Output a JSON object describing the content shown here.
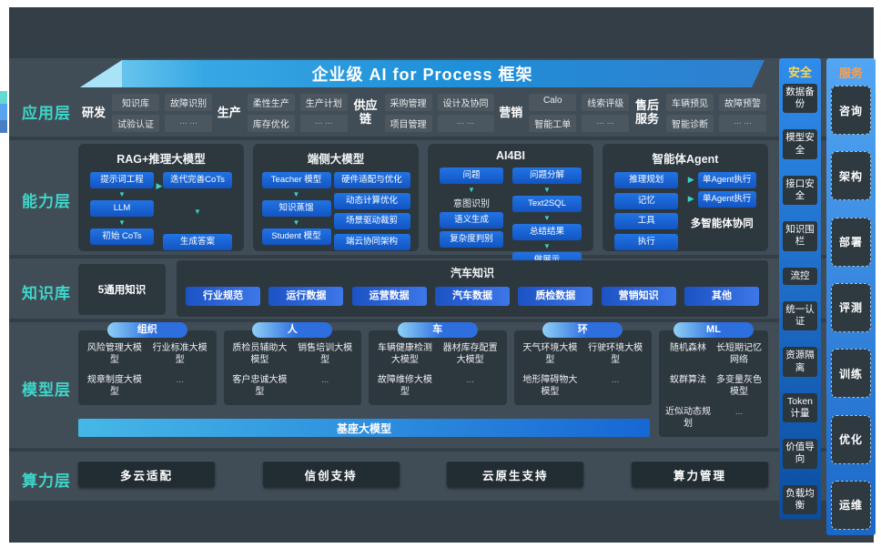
{
  "title": "企业级 AI for Process 框架",
  "layer_labels": {
    "app": "应用层",
    "capability": "能力层",
    "knowledge": "知识库",
    "model": "模型层",
    "compute": "算力层"
  },
  "app": {
    "groups": [
      {
        "label": "研发",
        "items": [
          "知识库",
          "故障识别",
          "试验认证",
          "... ..."
        ]
      },
      {
        "label": "生产",
        "items": [
          "柔性生产",
          "生产计划",
          "库存优化",
          "... ..."
        ]
      },
      {
        "label": "供应链",
        "items": [
          "采购管理",
          "设计及协同",
          "项目管理",
          "... ..."
        ]
      },
      {
        "label": "营销",
        "items": [
          "Calo",
          "线索评级",
          "智能工单",
          "... ..."
        ]
      },
      {
        "label": "售后服务",
        "items": [
          "车辆预见",
          "故障预警",
          "智能诊断",
          "... ..."
        ]
      }
    ]
  },
  "capability": {
    "boxes": [
      {
        "title": "RAG+推理大模型",
        "left": [
          "提示词工程",
          "LLM",
          "初始 CoTs"
        ],
        "right": [
          "迭代完善CoTs",
          "生成答案"
        ]
      },
      {
        "title": "端侧大模型",
        "left": [
          "Teacher 模型",
          "知识蒸馏",
          "Student 模型"
        ],
        "right": [
          "硬件适配与优化",
          "动态计算优化",
          "场景驱动裁剪",
          "端云协同架构"
        ]
      },
      {
        "title": "AI4BI",
        "left": [
          "问题",
          "意图识别",
          "语义生成",
          "复杂度判别"
        ],
        "right": [
          "问题分解",
          "Text2SQL",
          "总结结果",
          "做展示"
        ]
      },
      {
        "title": "智能体Agent",
        "left": [
          "推理规划",
          "记忆",
          "工具",
          "执行"
        ],
        "right": [
          "单Agent执行",
          "单Agent执行"
        ],
        "note": "多智能体协同"
      }
    ]
  },
  "knowledge": {
    "general": "5通用知识",
    "domain_title": "汽车知识",
    "pills": [
      "行业规范",
      "运行数据",
      "运营数据",
      "汽车数据",
      "质检数据",
      "营销知识",
      "其他"
    ]
  },
  "model": {
    "groups": [
      {
        "label": "组织",
        "items": [
          "风险管理大模型",
          "行业标准大模型",
          "规章制度大模型",
          "..."
        ]
      },
      {
        "label": "人",
        "items": [
          "质检员辅助大模型",
          "销售培训大模型",
          "客户忠诚大模型",
          "..."
        ]
      },
      {
        "label": "车",
        "items": [
          "车辆健康检测大模型",
          "器材库存配置大模型",
          "故障维修大模型",
          "..."
        ]
      },
      {
        "label": "环",
        "items": [
          "天气环境大模型",
          "行驶环境大模型",
          "地形障碍物大模型",
          "..."
        ]
      },
      {
        "label": "ML",
        "items": [
          "随机森林",
          "长短期记忆网络",
          "蚁群算法",
          "多变量灰色模型",
          "近似动态规划",
          "..."
        ]
      }
    ],
    "base_bar": "基座大模型"
  },
  "compute": {
    "items": [
      "多云适配",
      "信创支持",
      "云原生支持",
      "算力管理"
    ]
  },
  "security": {
    "header": "安全",
    "items": [
      "数据备份",
      "模型安全",
      "接口安全",
      "知识围栏",
      "流控",
      "统一认证",
      "资源隔离",
      "Token计量",
      "价值导向",
      "负载均衡"
    ]
  },
  "service": {
    "header": "服务",
    "items": [
      "咨询",
      "架构",
      "部署",
      "评测",
      "训练",
      "优化",
      "运维"
    ]
  },
  "colors": {
    "accent_teal": "#3ad2c6",
    "accent_blue": "#1a66d8",
    "security_header": "#ffd64a",
    "service_header": "#ff9f4a"
  }
}
